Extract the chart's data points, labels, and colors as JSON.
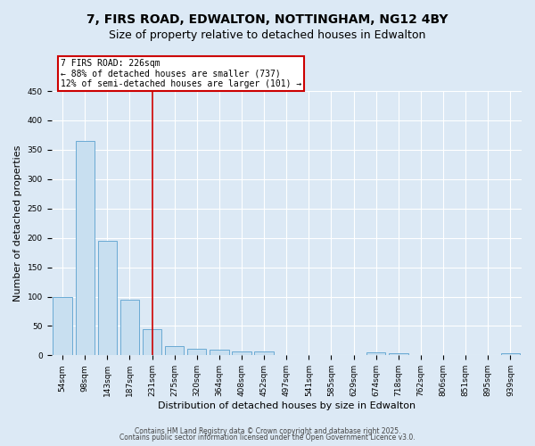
{
  "title_line1": "7, FIRS ROAD, EDWALTON, NOTTINGHAM, NG12 4BY",
  "title_line2": "Size of property relative to detached houses in Edwalton",
  "xlabel": "Distribution of detached houses by size in Edwalton",
  "ylabel": "Number of detached properties",
  "categories": [
    "54sqm",
    "98sqm",
    "143sqm",
    "187sqm",
    "231sqm",
    "275sqm",
    "320sqm",
    "364sqm",
    "408sqm",
    "452sqm",
    "497sqm",
    "541sqm",
    "585sqm",
    "629sqm",
    "674sqm",
    "718sqm",
    "762sqm",
    "806sqm",
    "851sqm",
    "895sqm",
    "939sqm"
  ],
  "values": [
    100,
    365,
    195,
    94,
    45,
    15,
    11,
    9,
    7,
    6,
    1,
    1,
    1,
    1,
    5,
    4,
    1,
    1,
    1,
    1,
    3
  ],
  "bar_color": "#c8dff0",
  "bar_edge_color": "#6aaad4",
  "vline_x_index": 4,
  "vline_color": "#cc0000",
  "annotation_line1": "7 FIRS ROAD: 226sqm",
  "annotation_line2": "← 88% of detached houses are smaller (737)",
  "annotation_line3": "12% of semi-detached houses are larger (101) →",
  "annotation_box_color": "#cc0000",
  "annotation_text_color": "#000000",
  "ylim": [
    0,
    450
  ],
  "yticks": [
    0,
    50,
    100,
    150,
    200,
    250,
    300,
    350,
    400,
    450
  ],
  "background_color": "#dce9f5",
  "plot_bg_color": "#dce9f5",
  "footer_line1": "Contains HM Land Registry data © Crown copyright and database right 2025.",
  "footer_line2": "Contains public sector information licensed under the Open Government Licence v3.0.",
  "grid_color": "#ffffff",
  "title_fontsize": 10,
  "subtitle_fontsize": 9,
  "tick_fontsize": 6.5,
  "axis_label_fontsize": 8,
  "footer_fontsize": 5.5,
  "annotation_fontsize": 7
}
